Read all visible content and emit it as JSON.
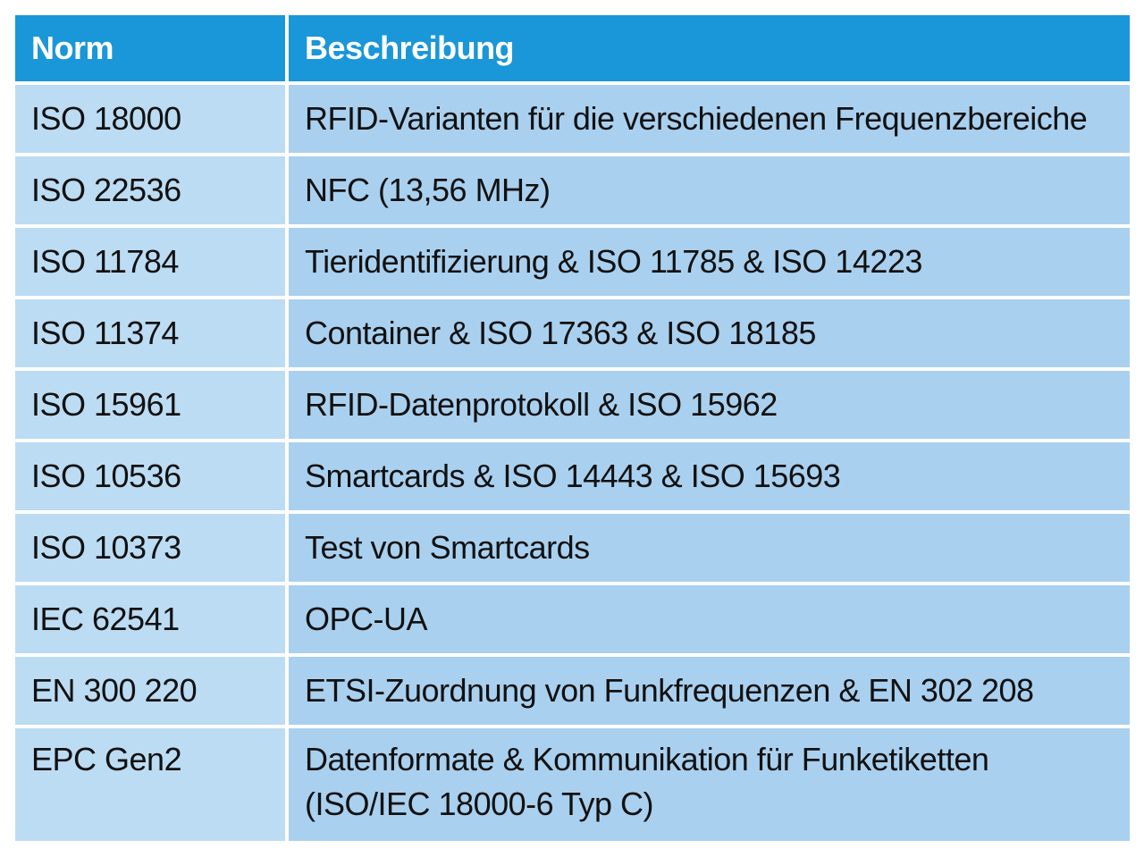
{
  "table": {
    "headers": {
      "norm": "Norm",
      "description": "Beschreibung"
    },
    "rows": [
      {
        "norm": "ISO 18000",
        "description": "RFID-Varianten für die verschiedenen Frequenzbereiche"
      },
      {
        "norm": "ISO 22536",
        "description": "NFC (13,56 MHz)"
      },
      {
        "norm": "ISO 11784",
        "description": "Tieridentifizierung & ISO 11785 & ISO 14223"
      },
      {
        "norm": "ISO 11374",
        "description": "Container & ISO 17363 & ISO 18185"
      },
      {
        "norm": "ISO 15961",
        "description": "RFID-Datenprotokoll & ISO 15962"
      },
      {
        "norm": "ISO 10536",
        "description": "Smartcards & ISO 14443 & ISO 15693"
      },
      {
        "norm": "ISO 10373",
        "description": "Test von Smartcards"
      },
      {
        "norm": "IEC 62541",
        "description": "OPC-UA"
      },
      {
        "norm": "EN 300 220",
        "description": "ETSI-Zuordnung von Funkfrequenzen & EN 302 208"
      },
      {
        "norm": "EPC Gen2",
        "description": "Datenformate & Kommunikation für Funketiketten\n(ISO/IEC 18000-6 Typ C)"
      }
    ]
  },
  "colors": {
    "header_bg": "#1a97d8",
    "header_text": "#ffffff",
    "norm_cell_bg": "#bcdcf3",
    "desc_cell_bg": "#a9d0ef",
    "body_text": "#111111"
  }
}
